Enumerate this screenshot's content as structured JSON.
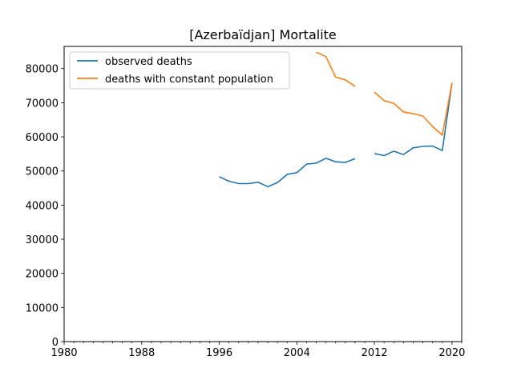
{
  "chart_data": {
    "type": "line",
    "title": "[Azerbaïdjan] Mortalite",
    "xlabel": "",
    "ylabel": "",
    "xlim": [
      1980,
      2021
    ],
    "ylim": [
      0,
      86500
    ],
    "x_ticks": [
      1980,
      1988,
      1996,
      2004,
      2012,
      2020
    ],
    "x_minor_ticks_every": 1,
    "y_ticks": [
      0,
      10000,
      20000,
      30000,
      40000,
      50000,
      60000,
      70000,
      80000
    ],
    "grid": false,
    "legend_position": "upper-left",
    "series": [
      {
        "name": "observed deaths",
        "color": "#1f77b4",
        "points": [
          [
            1996,
            48300
          ],
          [
            1997,
            47000
          ],
          [
            1998,
            46300
          ],
          [
            1999,
            46300
          ],
          [
            2000,
            46700
          ],
          [
            2001,
            45400
          ],
          [
            2002,
            46600
          ],
          [
            2003,
            49000
          ],
          [
            2004,
            49500
          ],
          [
            2005,
            52000
          ],
          [
            2006,
            52300
          ],
          [
            2007,
            53700
          ],
          [
            2008,
            52700
          ],
          [
            2009,
            52500
          ],
          [
            2010,
            53600
          ],
          [
            2011,
            null
          ],
          [
            2012,
            55100
          ],
          [
            2013,
            54500
          ],
          [
            2014,
            55800
          ],
          [
            2015,
            54800
          ],
          [
            2016,
            56800
          ],
          [
            2017,
            57200
          ],
          [
            2018,
            57300
          ],
          [
            2019,
            56000
          ],
          [
            2020,
            75800
          ]
        ]
      },
      {
        "name": "deaths with constant population",
        "color": "#ff7f0e",
        "points": [
          [
            2006,
            84800
          ],
          [
            2007,
            83500
          ],
          [
            2008,
            77500
          ],
          [
            2009,
            76700
          ],
          [
            2010,
            74800
          ],
          [
            2011,
            null
          ],
          [
            2012,
            73100
          ],
          [
            2013,
            70600
          ],
          [
            2014,
            69800
          ],
          [
            2015,
            67300
          ],
          [
            2016,
            66800
          ],
          [
            2017,
            66100
          ],
          [
            2018,
            63000
          ],
          [
            2019,
            60500
          ],
          [
            2020,
            75800
          ]
        ]
      }
    ]
  }
}
